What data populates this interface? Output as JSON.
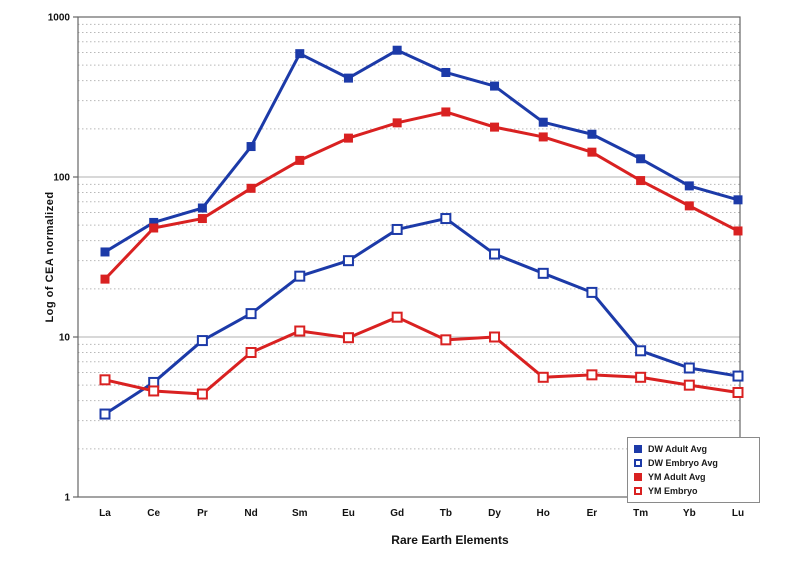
{
  "chart_data": {
    "type": "line",
    "title": "",
    "xlabel": "Rare Earth Elements",
    "ylabel": "Log of CEA normalized",
    "y_scale": "log",
    "ylim": [
      1,
      1000
    ],
    "y_ticks": [
      "1",
      "10",
      "100",
      "1000"
    ],
    "grid": "horizontal log minor gridlines, dotted",
    "legend_position": "bottom-right",
    "categories": [
      "La",
      "Ce",
      "Pr",
      "Nd",
      "Sm",
      "Eu",
      "Gd",
      "Tb",
      "Dy",
      "Ho",
      "Er",
      "Tm",
      "Yb",
      "Lu"
    ],
    "series": [
      {
        "name": "DW Adult Avg",
        "color": "#1c3aa8",
        "marker": "filled-square",
        "values": [
          34,
          52,
          64,
          155,
          590,
          415,
          620,
          450,
          370,
          220,
          185,
          130,
          88,
          72
        ]
      },
      {
        "name": "DW Embryo Avg",
        "color": "#1c3aa8",
        "marker": "open-square",
        "values": [
          3.3,
          5.2,
          9.5,
          14,
          24,
          30,
          47,
          55,
          33,
          25,
          19,
          8.2,
          6.4,
          5.7
        ]
      },
      {
        "name": "YM Adult Avg",
        "color": "#d92121",
        "marker": "filled-square",
        "values": [
          23,
          48,
          55,
          85,
          127,
          175,
          218,
          255,
          205,
          178,
          143,
          95,
          66,
          46
        ]
      },
      {
        "name": "YM Embryo",
        "color": "#d92121",
        "marker": "open-square",
        "values": [
          5.4,
          4.6,
          4.4,
          8.0,
          10.9,
          9.9,
          13.3,
          9.6,
          10.0,
          5.6,
          5.8,
          5.6,
          5.0,
          4.5
        ]
      }
    ],
    "axis_color": "#666666",
    "gridline_color": "#b8b8b8",
    "tick_label_color": "#111111"
  }
}
